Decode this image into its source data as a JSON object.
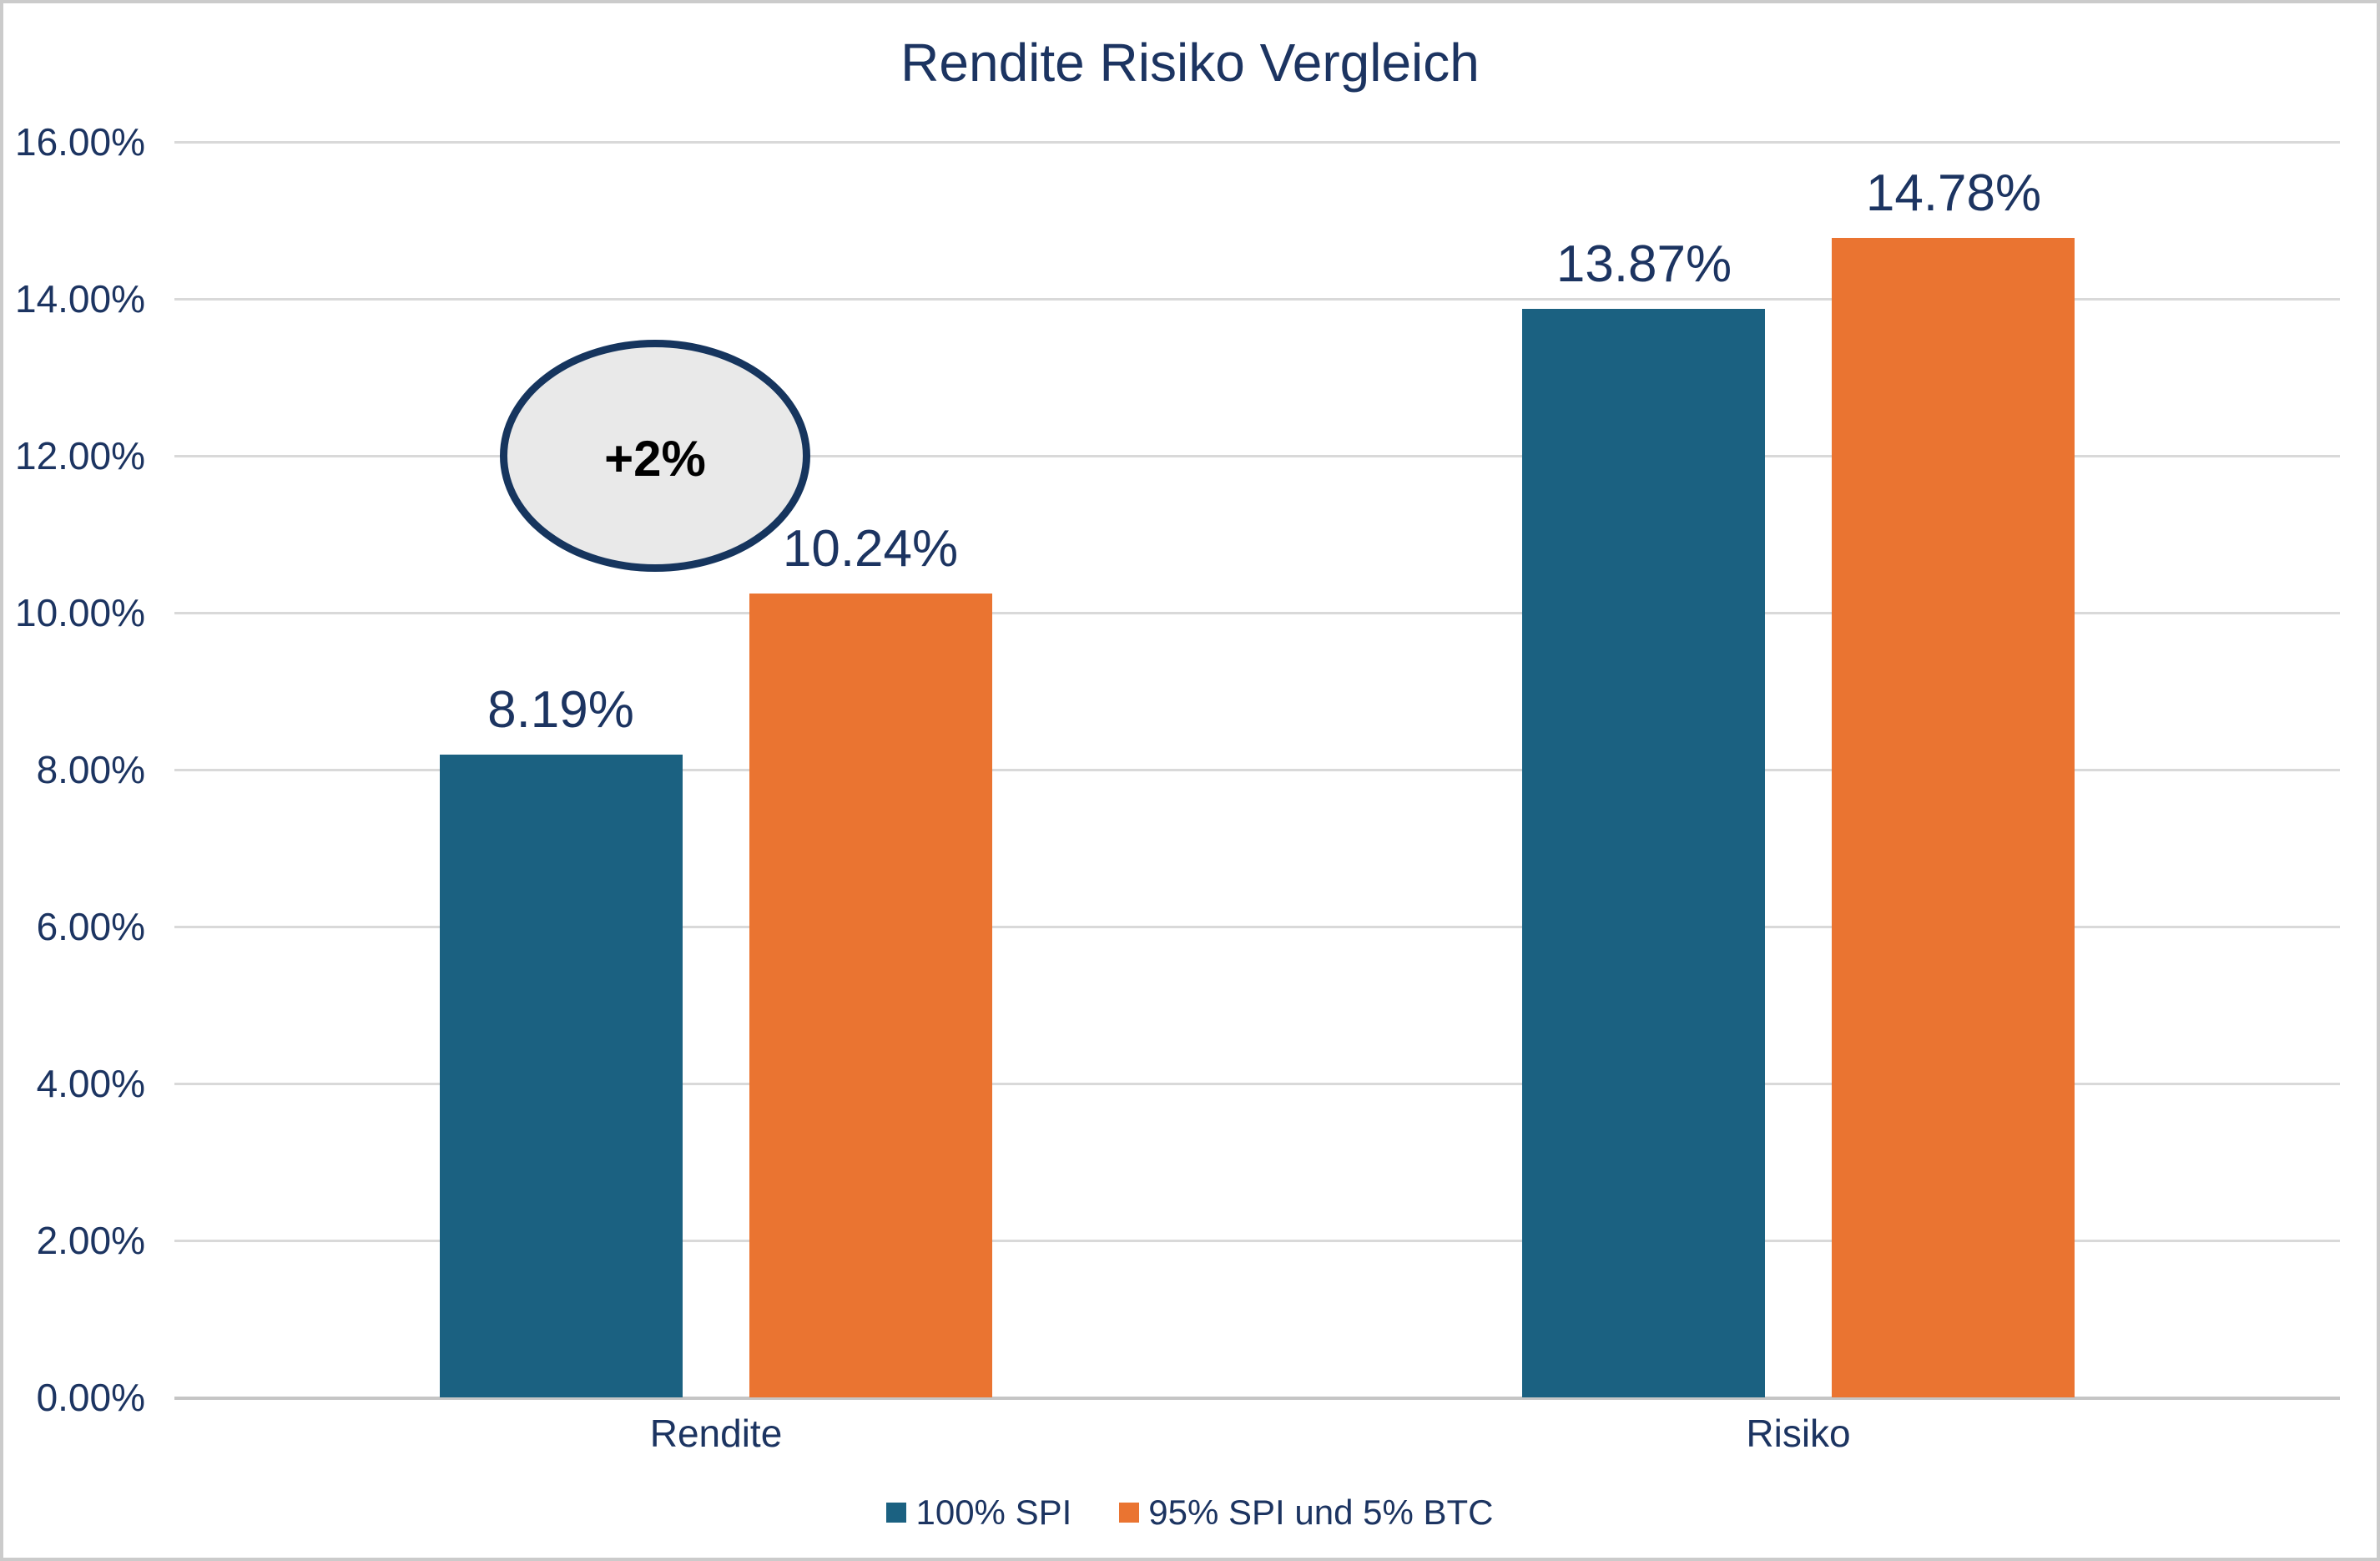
{
  "chart_data": {
    "type": "bar",
    "title": "Rendite Risiko Vergleich",
    "categories": [
      "Rendite",
      "Risiko"
    ],
    "series": [
      {
        "name": "100% SPI",
        "color": "#1B6181",
        "values": [
          8.19,
          13.87
        ],
        "labels": [
          "8.19%",
          "13.87%"
        ]
      },
      {
        "name": "95% SPI und 5% BTC",
        "color": "#EA7431",
        "values": [
          10.24,
          14.78
        ],
        "labels": [
          "10.24%",
          "14.78%"
        ]
      }
    ],
    "y_axis": {
      "min": 0,
      "max": 16,
      "step": 2,
      "tick_labels": [
        "0.00%",
        "2.00%",
        "4.00%",
        "6.00%",
        "8.00%",
        "10.00%",
        "12.00%",
        "14.00%",
        "16.00%"
      ]
    },
    "annotation": {
      "text": "+2%",
      "shape": "ellipse"
    },
    "legend_position": "bottom",
    "grid": true,
    "colors": {
      "text": "#1C3461",
      "gridline": "#D9D9D9",
      "axis_line": "#C5C5C5",
      "annotation_fill": "#E9E9E9",
      "annotation_border": "#16355E",
      "background": "#FFFFFF"
    }
  }
}
